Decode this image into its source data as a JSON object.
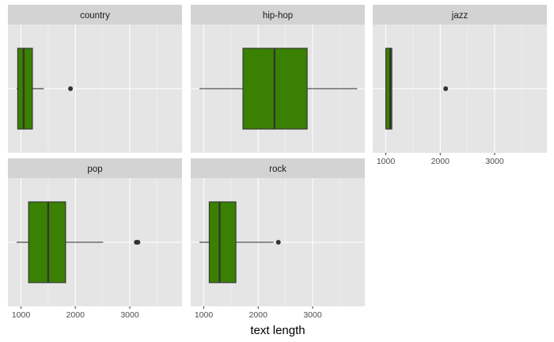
{
  "chart_data": {
    "type": "boxplot",
    "orientation": "horizontal",
    "facet_layout": "3 columns, 2 rows, shared x axis",
    "xlabel": "text length",
    "ylabel": "",
    "xlim": [
      760,
      3960
    ],
    "x_ticks": [
      1000,
      2000,
      3000
    ],
    "grid": true,
    "fill_color": "#3a8003",
    "panel_background": "#e5e5e5",
    "strip_background": "#d3d3d3",
    "panels": [
      {
        "label": "country",
        "whisker_low": 920,
        "q1": 940,
        "median": 1050,
        "q3": 1210,
        "whisker_high": 1420,
        "outliers": [
          1910
        ]
      },
      {
        "label": "hip-hop",
        "whisker_low": 920,
        "q1": 1720,
        "median": 2300,
        "q3": 2900,
        "whisker_high": 3820,
        "outliers": []
      },
      {
        "label": "jazz",
        "whisker_low": 1000,
        "q1": 1000,
        "median": 1080,
        "q3": 1110,
        "whisker_high": 1110,
        "outliers": [
          2100
        ]
      },
      {
        "label": "pop",
        "whisker_low": 920,
        "q1": 1140,
        "median": 1500,
        "q3": 1820,
        "whisker_high": 2510,
        "outliers": [
          3120,
          3150
        ]
      },
      {
        "label": "rock",
        "whisker_low": 920,
        "q1": 1100,
        "median": 1290,
        "q3": 1590,
        "whisker_high": 2280,
        "outliers": [
          2370
        ]
      }
    ]
  }
}
